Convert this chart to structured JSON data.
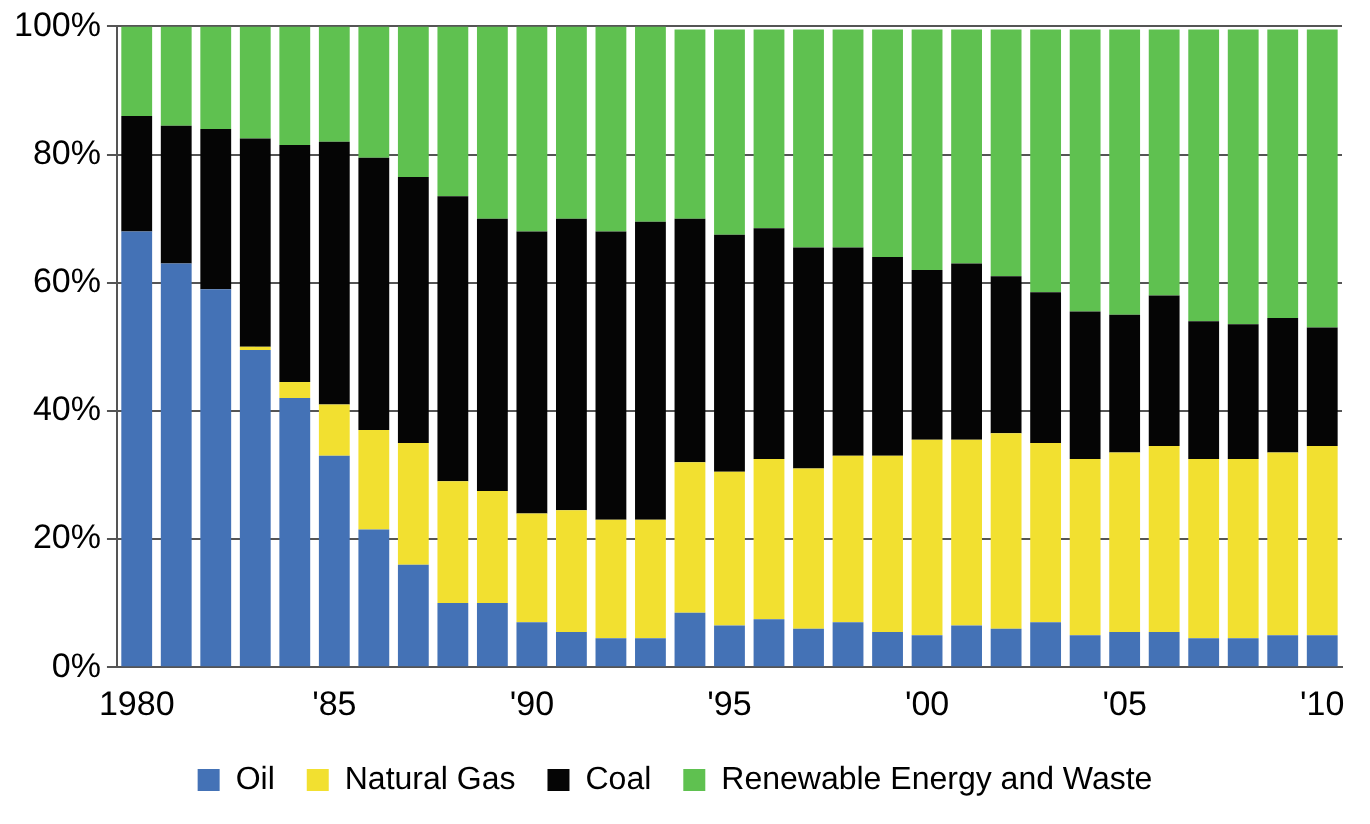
{
  "chart_data": {
    "type": "bar",
    "stacked": true,
    "categories": [
      "1980",
      null,
      null,
      null,
      null,
      "'85",
      null,
      null,
      null,
      null,
      "'90",
      null,
      null,
      null,
      null,
      "'95",
      null,
      null,
      null,
      null,
      "'00",
      null,
      null,
      null,
      null,
      "'05",
      null,
      null,
      null,
      null,
      "'10"
    ],
    "series": [
      {
        "name": "Oil",
        "color": "#4472b6",
        "values": [
          68,
          63,
          59,
          49.5,
          42,
          33,
          21.5,
          16,
          10,
          10,
          7,
          5.5,
          4.5,
          4.5,
          8.5,
          6.5,
          7.5,
          6,
          7,
          5.5,
          5,
          6.5,
          6,
          7,
          5,
          5.5,
          5.5,
          4.5,
          4.5,
          5,
          5
        ]
      },
      {
        "name": "Natural Gas",
        "color": "#f2e030",
        "values": [
          0,
          0,
          0,
          0.5,
          2.5,
          8,
          15.5,
          19,
          19,
          17.5,
          17,
          19,
          18.5,
          18.5,
          23.5,
          24,
          25,
          25,
          26,
          27.5,
          30.5,
          29,
          30.5,
          28,
          27.5,
          28,
          29,
          28,
          28,
          28.5,
          29.5
        ]
      },
      {
        "name": "Coal",
        "color": "#050505",
        "values": [
          18,
          21.5,
          25,
          32.5,
          37,
          41,
          42.5,
          41.5,
          44.5,
          42.5,
          44,
          45.5,
          45,
          46.5,
          38,
          37,
          36,
          34.5,
          32.5,
          31,
          26.5,
          27.5,
          24.5,
          23.5,
          23,
          21.5,
          23.5,
          21.5,
          21,
          21,
          18.5
        ]
      },
      {
        "name": "Renewable Energy and Waste",
        "color": "#5fc150",
        "values": [
          14,
          15.5,
          16,
          17.5,
          18.5,
          18,
          20.5,
          23.5,
          26.5,
          30,
          32,
          30,
          32,
          30.5,
          29.5,
          32,
          31,
          34,
          34,
          35.5,
          37.5,
          36.5,
          38.5,
          41,
          44,
          44.5,
          41.5,
          45.5,
          46,
          45,
          46.5
        ]
      }
    ],
    "ylim": [
      0,
      100
    ],
    "yticks": [
      {
        "value": 0,
        "label": "0%"
      },
      {
        "value": 20,
        "label": "20%"
      },
      {
        "value": 40,
        "label": "40%"
      },
      {
        "value": 60,
        "label": "60%"
      },
      {
        "value": 80,
        "label": "80%"
      },
      {
        "value": 100,
        "label": "100%"
      }
    ],
    "grid": "y",
    "legend": "bottom"
  }
}
